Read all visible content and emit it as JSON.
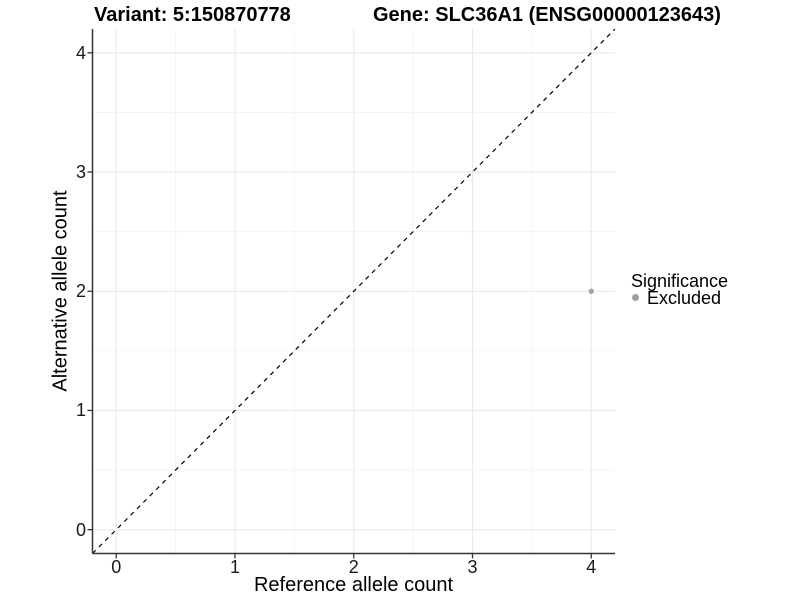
{
  "title": {
    "variant": "Variant: 5:150870778",
    "gene": "Gene: SLC36A1 (ENSG00000123643)"
  },
  "chart_data": {
    "type": "scatter",
    "title": "Variant: 5:150870778    Gene: SLC36A1 (ENSG00000123643)",
    "xlabel": "Reference allele count",
    "ylabel": "Alternative allele count",
    "xlim": [
      -0.2,
      4.2
    ],
    "ylim": [
      -0.2,
      4.2
    ],
    "x_ticks": [
      0,
      1,
      2,
      3,
      4
    ],
    "y_ticks": [
      0,
      1,
      2,
      3,
      4
    ],
    "x_minor_ticks": [
      0.5,
      1.5,
      2.5,
      3.5
    ],
    "y_minor_ticks": [
      0.5,
      1.5,
      2.5,
      3.5
    ],
    "grid": {
      "show_major": true,
      "show_minor": true,
      "major_color": "#e9e9e9",
      "minor_color": "#f3f3f3"
    },
    "series": [
      {
        "name": "Excluded",
        "color": "#a6a6a6",
        "marker": "circle",
        "points": [
          {
            "x": 4,
            "y": 2
          }
        ]
      }
    ],
    "reference_line": {
      "type": "identity",
      "style": "dashed",
      "color": "#000000",
      "from": [
        -0.2,
        -0.2
      ],
      "to": [
        4.2,
        4.2
      ]
    },
    "legend": {
      "title": "Significance",
      "position": "right",
      "items": [
        {
          "label": "Excluded",
          "color": "#a0a0a0"
        }
      ]
    },
    "axis": {
      "line_color": "#333333",
      "tick_color": "#333333",
      "tick_length": 5
    }
  }
}
